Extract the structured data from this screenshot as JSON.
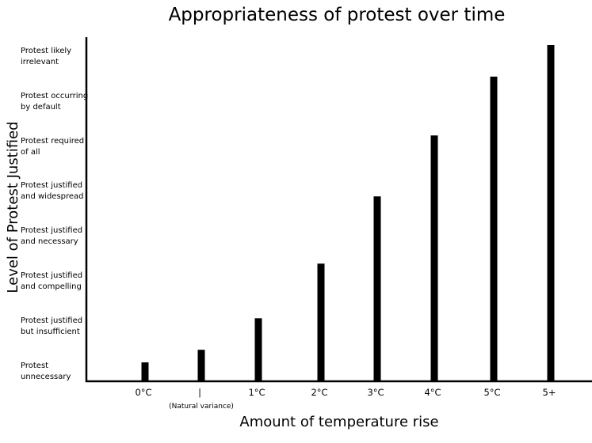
{
  "chart_data": {
    "type": "bar",
    "title": "Appropriateness of protest over time",
    "xlabel": "Amount of temperature rise",
    "ylabel": "Level of Protest Justified",
    "categories": [
      "0°C",
      "|",
      "1°C",
      "2°C",
      "3°C",
      "4°C",
      "5°C",
      "5+"
    ],
    "category_sublabels": [
      "",
      "(Natural variance)",
      "",
      "",
      "",
      "",
      "",
      ""
    ],
    "values": [
      0.45,
      0.75,
      1.5,
      2.8,
      4.4,
      5.85,
      7.25,
      8.0
    ],
    "ylim": [
      0,
      8
    ],
    "y_levels": [
      [
        "Protest",
        "unnecessary"
      ],
      [
        "Protest justified",
        "but insufficient"
      ],
      [
        "Protest justified",
        "and compelling"
      ],
      [
        "Protest justified",
        "and necessary"
      ],
      [
        "Protest justified",
        "and widespread"
      ],
      [
        "Protest required",
        "of all"
      ],
      [
        "Protest occurring",
        "by default"
      ],
      [
        "Protest likely",
        "irrelevant"
      ]
    ],
    "bar_color": "#000000",
    "grid": false,
    "legend": "none"
  }
}
